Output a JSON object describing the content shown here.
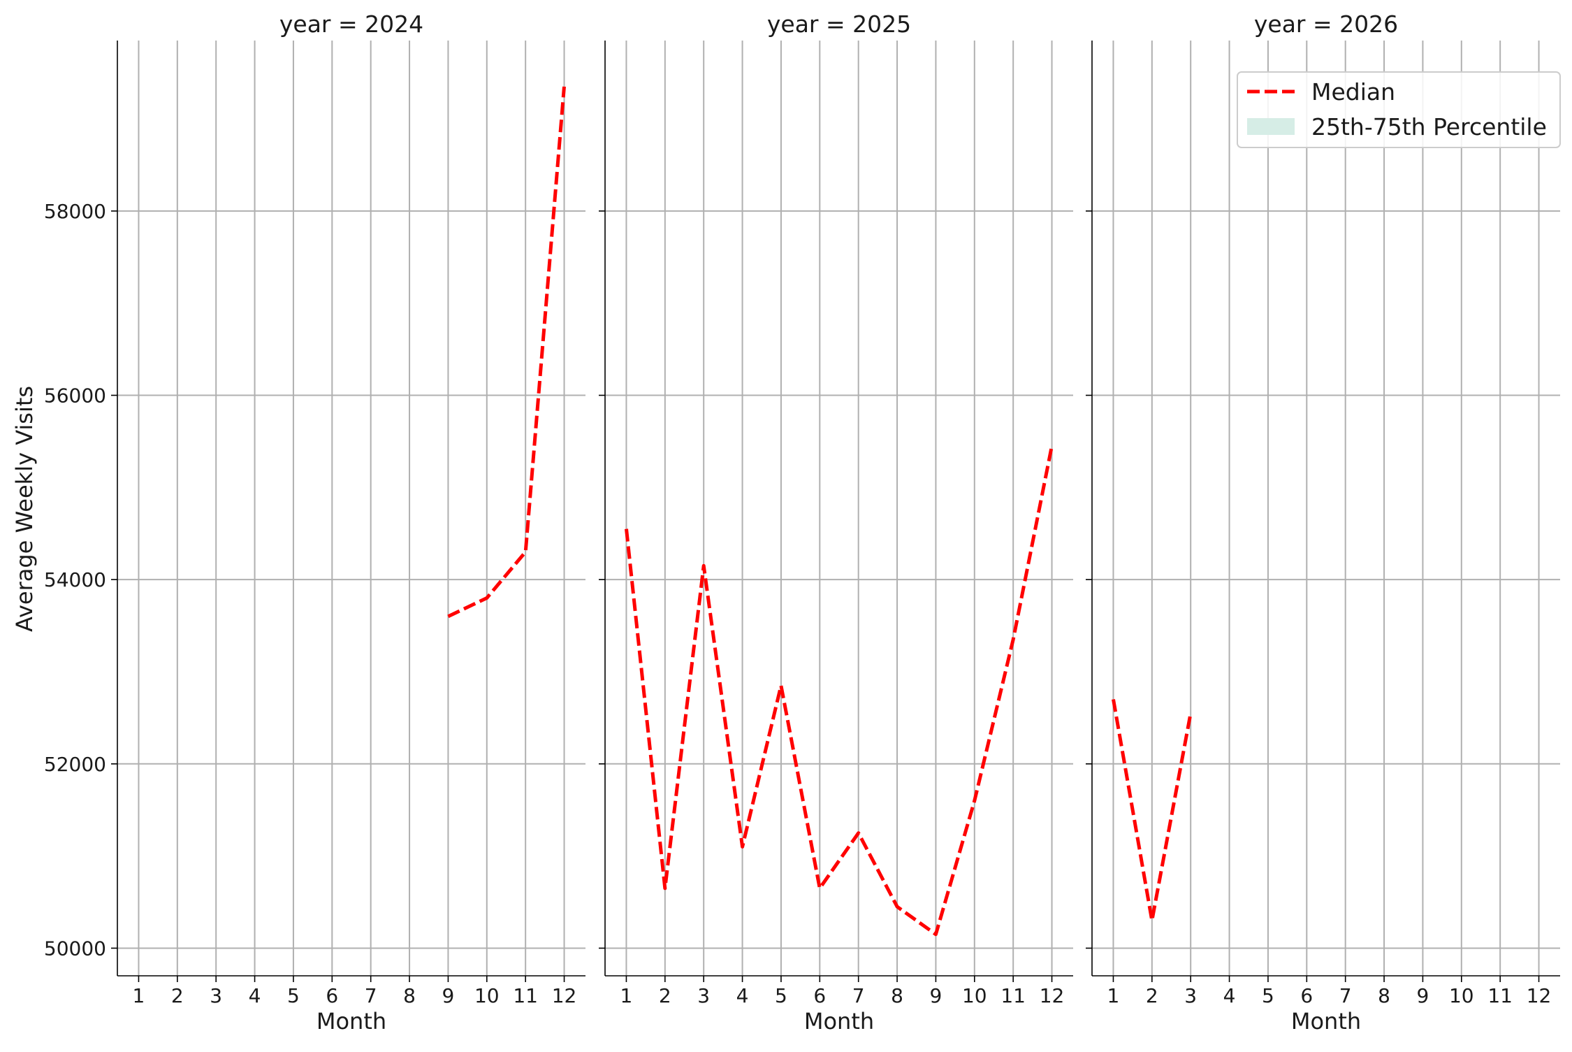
{
  "chart_data": {
    "type": "line",
    "layout": "facet-columns",
    "facet_variable": "year",
    "xlabel": "Month",
    "ylabel": "Average Weekly Visits",
    "x_ticks": [
      1,
      2,
      3,
      4,
      5,
      6,
      7,
      8,
      9,
      10,
      11,
      12
    ],
    "y_ticks": [
      50000,
      52000,
      54000,
      56000,
      58000
    ],
    "ylim": [
      49700,
      59850
    ],
    "xlim": [
      0.45,
      12.55
    ],
    "grid": true,
    "shared_y": true,
    "legend": {
      "placement": "top-right",
      "entries": [
        {
          "label": "Median",
          "style": "dashed-line",
          "color": "#ff0000"
        },
        {
          "label": "25th-75th Percentile",
          "style": "band",
          "color": "#d6ede6"
        }
      ]
    },
    "panels": [
      {
        "title": "year = 2024",
        "series": [
          {
            "name": "Median",
            "color": "#ff0000",
            "x": [
              9,
              10,
              11,
              12
            ],
            "y": [
              53600,
              53800,
              54300,
              59350
            ]
          }
        ]
      },
      {
        "title": "year = 2025",
        "series": [
          {
            "name": "Median",
            "color": "#ff0000",
            "x": [
              1,
              2,
              3,
              4,
              5,
              6,
              7,
              8,
              9,
              10,
              11,
              12
            ],
            "y": [
              54550,
              50650,
              54150,
              51100,
              52850,
              50650,
              51250,
              50450,
              50150,
              51600,
              53350,
              55450
            ]
          }
        ]
      },
      {
        "title": "year = 2026",
        "series": [
          {
            "name": "Median",
            "color": "#ff0000",
            "x": [
              1,
              2,
              3
            ],
            "y": [
              52700,
              50300,
              52550
            ]
          }
        ]
      }
    ]
  }
}
